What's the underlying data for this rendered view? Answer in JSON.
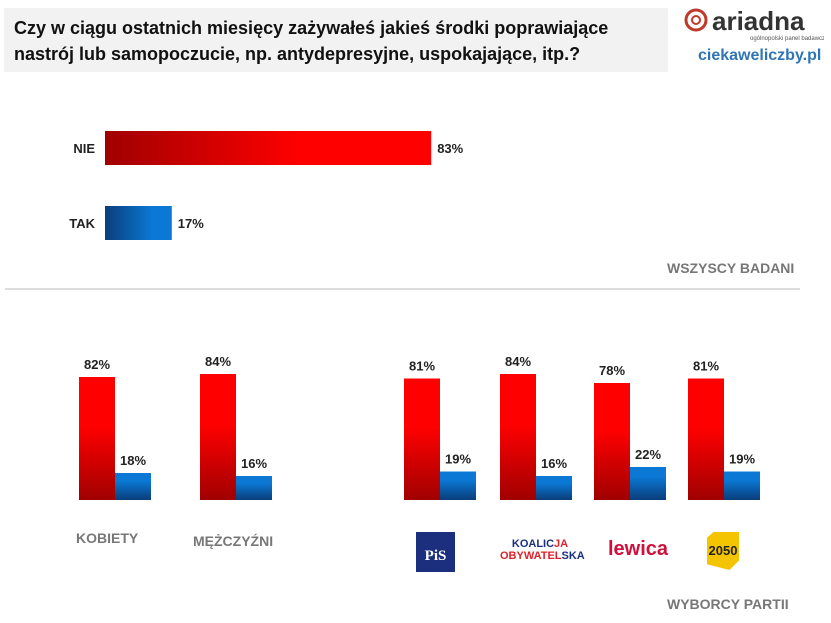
{
  "title_line1": "Czy w ciągu ostatnich miesięcy zażywałeś jakieś środki poprawiające",
  "title_line2": "nastrój lub samopoczucie, np. antydepresyjne, uspokajające, itp.?",
  "logo": {
    "brand": "ariadna",
    "tagline": "ogólnopolski panel badawczy",
    "site": "ciekaweliczby.pl"
  },
  "colors": {
    "nie": "#ff0000",
    "tak": "#0070c0"
  },
  "chart_data": [
    {
      "type": "bar",
      "orientation": "horizontal",
      "group_label": "WSZYSCY BADANI",
      "categories": [
        "NIE",
        "TAK"
      ],
      "values": [
        83,
        17
      ],
      "unit": "%"
    },
    {
      "type": "bar",
      "orientation": "vertical",
      "categories": [
        "KOBIETY",
        "MĘŻCZYŹNI",
        "PiS",
        "KOALICJA OBYWATELSKA",
        "lewica",
        "2050"
      ],
      "series": [
        {
          "values": [
            82,
            84,
            81,
            84,
            78,
            81
          ]
        },
        {
          "values": [
            18,
            16,
            19,
            16,
            22,
            19
          ]
        }
      ],
      "group_label": "WYBORCY PARTII",
      "unit": "%"
    }
  ]
}
